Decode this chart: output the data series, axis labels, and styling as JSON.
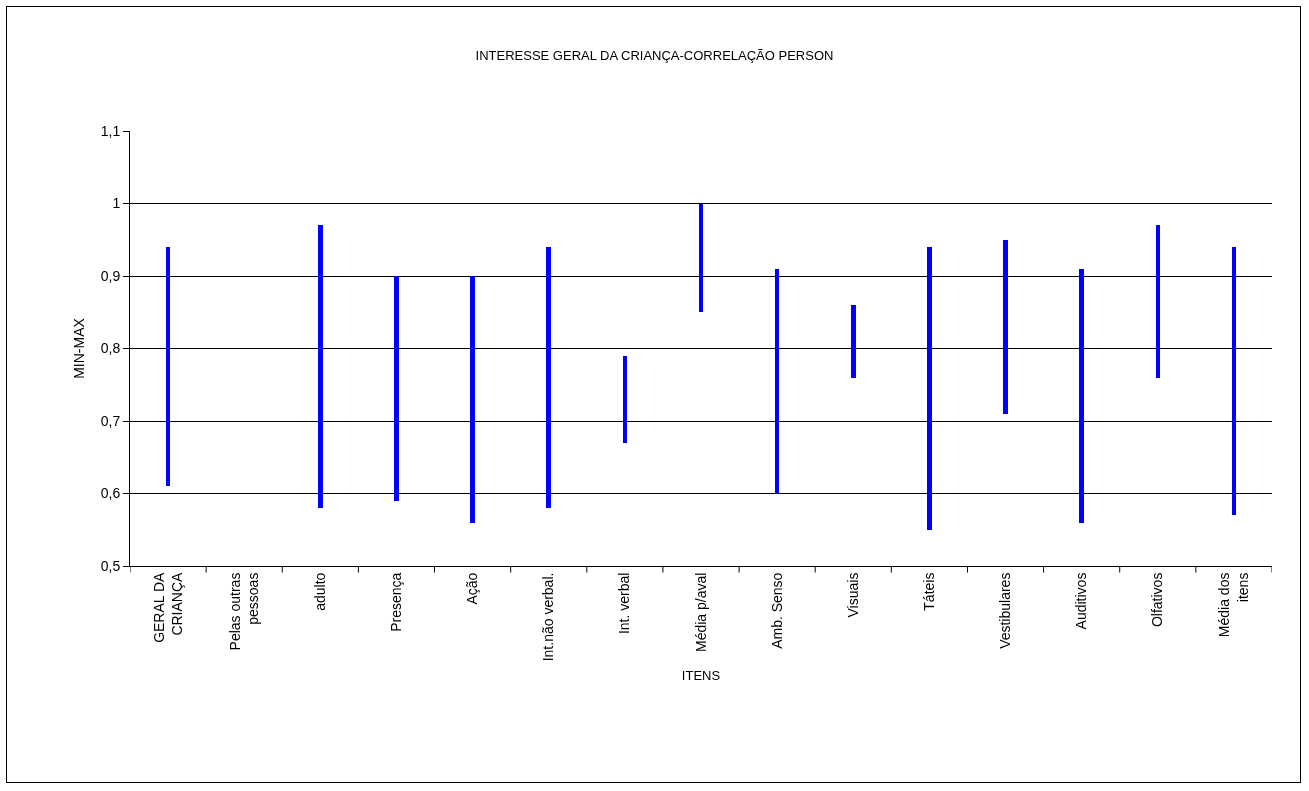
{
  "chart_data": {
    "type": "bar",
    "title": "INTERESSE GERAL DA CRIANÇA-CORRELAÇÃO PERSON",
    "xlabel": "ITENS",
    "ylabel": "MIN-MAX",
    "categories": [
      "GERAL DA\nCRIANÇA",
      "Pelas outras\npessoas",
      "adulto",
      "Presença",
      "Ação",
      "Int.não verbal.",
      "Int. verbal",
      "Média p/aval",
      "Amb. Senso",
      "Visuais",
      "Táteis",
      "Vestibulares",
      "Auditivos",
      "Olfativos",
      "Média dos\nitens"
    ],
    "values": [
      0.33,
      null,
      0.39,
      0.31,
      0.34,
      0.36,
      0.12,
      0.15,
      0.31,
      0.1,
      0.39,
      0.24,
      0.35,
      0.21,
      0.37
    ],
    "base": [
      0.61,
      null,
      0.58,
      0.59,
      0.56,
      0.58,
      0.67,
      0.85,
      0.6,
      0.76,
      0.55,
      0.71,
      0.56,
      0.76,
      0.57
    ],
    "color": "#0000ff",
    "ylim": [
      0.5,
      1.1
    ],
    "yticks": [
      {
        "value": 0.5,
        "label": "0,5"
      },
      {
        "value": 0.6,
        "label": "0,6"
      },
      {
        "value": 0.7,
        "label": "0,7"
      },
      {
        "value": 0.8,
        "label": "0,8"
      },
      {
        "value": 0.9,
        "label": "0,9"
      },
      1,
      {
        "value": 1.1,
        "label": "1,1"
      }
    ],
    "grid": "y"
  }
}
